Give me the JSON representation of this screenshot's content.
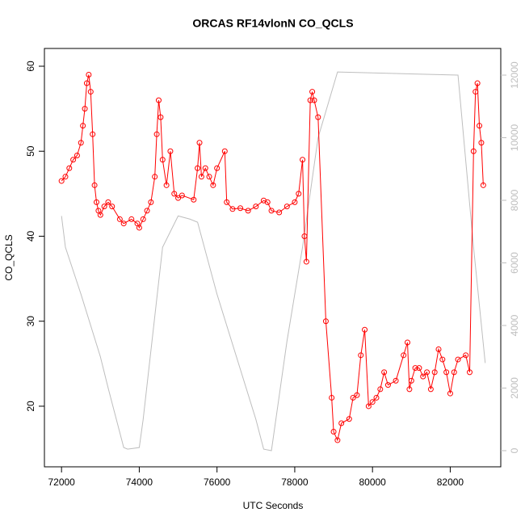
{
  "chart_data": {
    "type": "line",
    "title": "ORCAS RF14vlonN CO_QCLS",
    "xlabel": "UTC Seconds",
    "ylabel": "CO_QCLS",
    "xlim": [
      71560,
      83300
    ],
    "ylim": [
      12.87,
      62.09
    ],
    "y2lim": [
      -516,
      12852
    ],
    "xticks": [
      72000,
      74000,
      76000,
      78000,
      80000,
      82000
    ],
    "yticks": [
      20,
      30,
      40,
      50,
      60
    ],
    "y2ticks": [
      0,
      2000,
      4000,
      6000,
      8000,
      10000,
      12000
    ],
    "series": [
      {
        "color": "#ff0000",
        "markers": true,
        "x": [
          72000,
          72100,
          72200,
          72300,
          72400,
          72500,
          72550,
          72600,
          72650,
          72700,
          72750,
          72800,
          72850,
          72900,
          72950,
          73000,
          73100,
          73200,
          73300,
          73500,
          73600,
          73800,
          73950,
          74000,
          74100,
          74200,
          74300,
          74400,
          74450,
          74500,
          74550,
          74600,
          74700,
          74800,
          74900,
          75000,
          75100,
          75400,
          75500,
          75550,
          75600,
          75700,
          75800,
          75900,
          76000,
          76200,
          76250,
          76400,
          76600,
          76800,
          77000,
          77200,
          77300,
          77400,
          77600,
          77800,
          78000,
          78100,
          78200,
          78250,
          78300,
          78400,
          78450,
          78500,
          78600,
          78800,
          78950,
          79000,
          79100,
          79200,
          79400,
          79500,
          79600,
          79700,
          79800,
          79900,
          80000,
          80100,
          80200,
          80300,
          80400,
          80600,
          80800,
          80900,
          80950,
          81000,
          81100,
          81200,
          81300,
          81400,
          81500,
          81600,
          81700,
          81800,
          81900,
          82000,
          82100,
          82200,
          82400,
          82500,
          82600,
          82650,
          82700,
          82750,
          82800,
          82850
        ],
        "values": [
          46.5,
          47,
          48,
          49,
          49.5,
          51,
          53,
          55,
          58,
          59,
          57,
          52,
          46,
          44,
          43,
          42.5,
          43.5,
          44,
          43.5,
          42,
          41.5,
          42,
          41.5,
          41,
          42,
          43,
          44,
          47,
          52,
          56,
          54,
          49,
          46,
          50,
          45,
          44.5,
          44.8,
          44.3,
          48,
          51,
          47,
          48,
          47,
          46,
          48,
          50,
          44,
          43.2,
          43.3,
          43,
          43.5,
          44.2,
          44,
          43,
          42.8,
          43.5,
          44,
          45,
          49,
          40,
          37,
          56,
          57,
          56,
          54,
          30,
          21,
          17,
          16,
          18,
          18.5,
          21,
          21.3,
          26,
          29,
          20,
          20.5,
          21,
          22,
          24,
          22.5,
          23,
          26,
          27.5,
          22,
          23,
          24.5,
          24.5,
          23.5,
          24,
          22,
          24,
          26.7,
          25.5,
          24,
          21.5,
          24,
          25.5,
          26,
          24,
          50,
          57,
          58,
          53,
          51,
          46
        ]
      },
      {
        "color": "#bebebe",
        "axis": "y2",
        "x": [
          72000,
          72100,
          72500,
          73000,
          73200,
          73600,
          73700,
          74000,
          74100,
          74600,
          75000,
          75300,
          75500,
          76000,
          76500,
          77000,
          77200,
          77400,
          77800,
          78200,
          78600,
          79100,
          82200,
          82600,
          82900
        ],
        "values": [
          7500,
          6500,
          5000,
          3000,
          2000,
          100,
          50,
          100,
          1000,
          6500,
          7500,
          7400,
          7300,
          5000,
          3000,
          1000,
          50,
          0,
          3500,
          6500,
          10000,
          12100,
          12000,
          6500,
          2800
        ]
      }
    ]
  }
}
